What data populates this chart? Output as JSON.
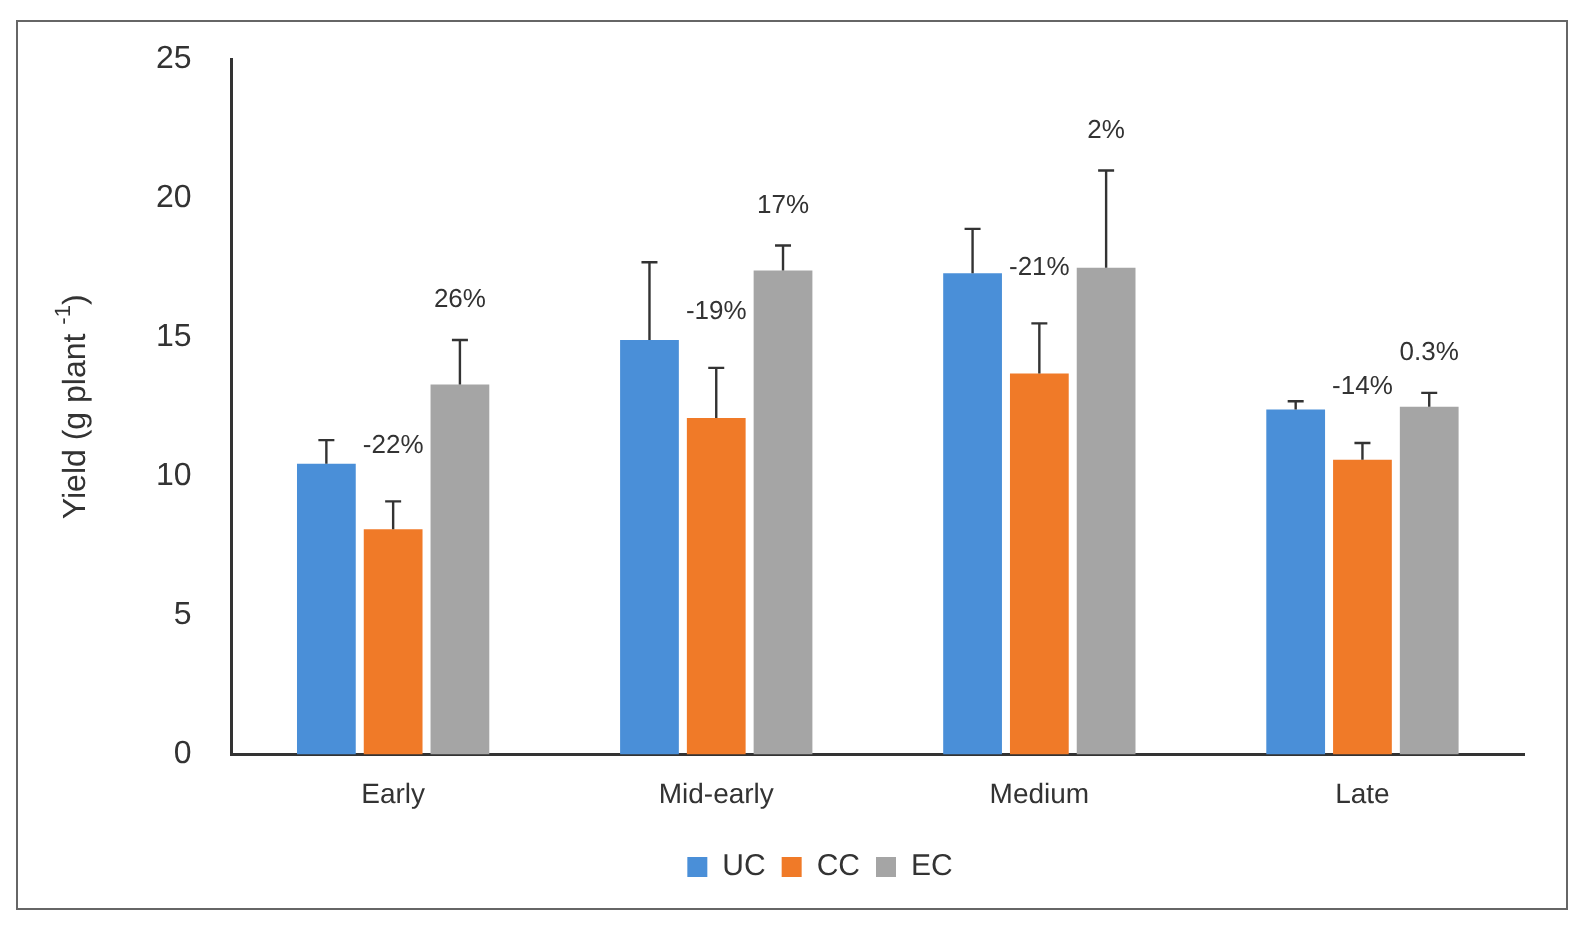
{
  "chart_data": {
    "type": "bar",
    "ylabel": "Yield (g plant $^{-1}$)",
    "categories": [
      "Early",
      "Mid-early",
      "Medium",
      "Late"
    ],
    "series": [
      {
        "name": "UC",
        "color": "#4a8fd8",
        "values": [
          10.45,
          14.9,
          17.3,
          12.4
        ],
        "errors": [
          [
            10.45,
            11.3
          ],
          [
            14.9,
            17.7
          ],
          [
            17.3,
            18.9
          ],
          [
            12.4,
            12.7
          ]
        ]
      },
      {
        "name": "CC",
        "color": "#f07a28",
        "values": [
          8.1,
          12.1,
          13.7,
          10.6
        ],
        "errors": [
          [
            8.1,
            9.1
          ],
          [
            12.1,
            13.9
          ],
          [
            13.7,
            15.5
          ],
          [
            10.6,
            11.2
          ]
        ]
      },
      {
        "name": "EC",
        "color": "#a5a5a5",
        "values": [
          13.3,
          17.4,
          17.5,
          12.5
        ],
        "errors": [
          [
            13.3,
            14.9
          ],
          [
            17.4,
            18.3
          ],
          [
            17.5,
            21.0
          ],
          [
            12.5,
            13.0
          ]
        ]
      }
    ],
    "annotations": [
      "-22%",
      "26%",
      "-19%",
      "17%",
      "-21%",
      "2%",
      "-14%",
      "0.3%"
    ],
    "ylim": [
      0,
      25
    ],
    "yticks": [
      0,
      5,
      10,
      15,
      20,
      25
    ],
    "grid": false,
    "legend": "bottom"
  }
}
